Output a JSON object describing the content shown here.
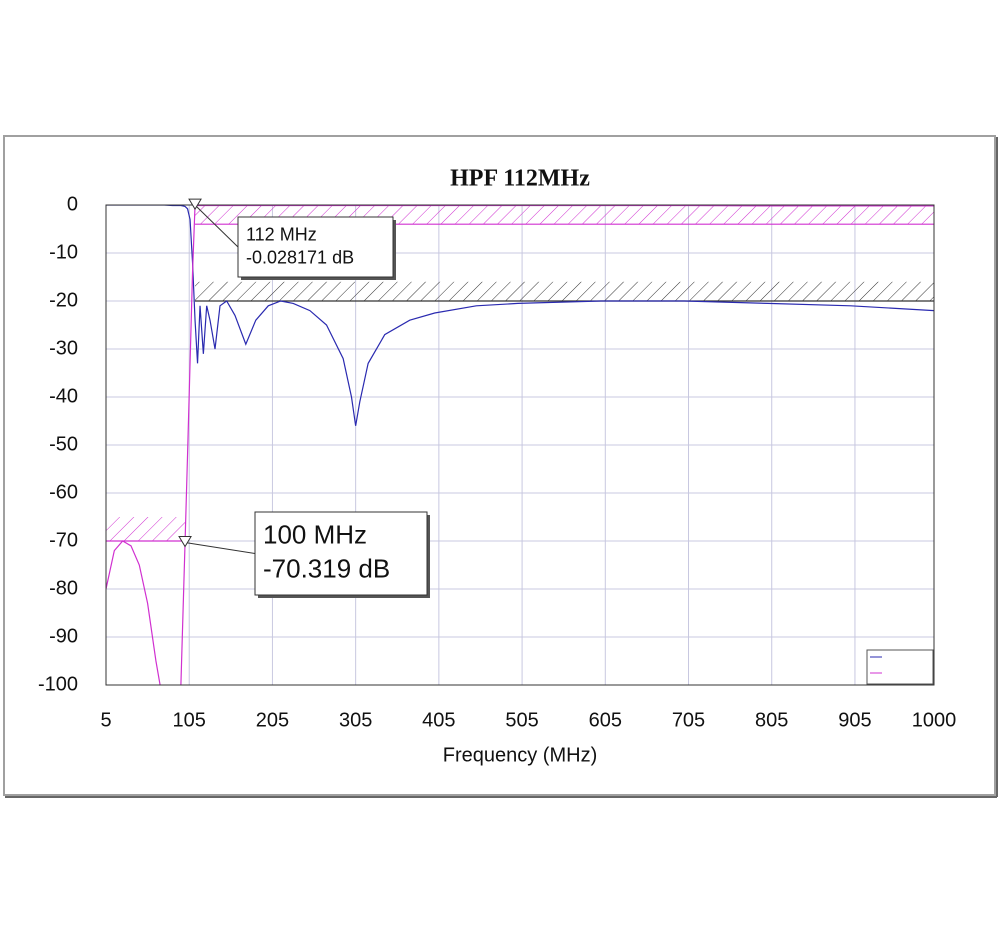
{
  "chart_data": {
    "type": "line",
    "title": "HPF 112MHz",
    "x_label": "Frequency (MHz)",
    "xlim": [
      5,
      1000
    ],
    "ylim": [
      -100,
      0
    ],
    "xticks": [
      5,
      105,
      205,
      305,
      405,
      505,
      605,
      705,
      805,
      905,
      1000
    ],
    "yticks": [
      0,
      -10,
      -20,
      -30,
      -40,
      -50,
      -60,
      -70,
      -80,
      -90,
      -100
    ],
    "grid": true,
    "x": [
      5,
      15,
      25,
      35,
      45,
      55,
      65,
      70,
      75,
      85,
      95,
      100,
      103,
      106,
      109,
      112,
      115,
      118,
      122,
      126,
      130,
      136,
      142,
      150,
      160,
      173,
      185,
      200,
      215,
      230,
      250,
      270,
      290,
      300,
      305,
      310,
      320,
      340,
      370,
      400,
      450,
      500,
      600,
      700,
      800,
      900,
      1000
    ],
    "series": [
      {
        "color": "#2a2ab0",
        "values": [
          0,
          0,
          0,
          0,
          0,
          0,
          0,
          0,
          0,
          -0.1,
          -0.1,
          -0.3,
          -0.8,
          -3,
          -12,
          -24,
          -33,
          -21,
          -31,
          -21,
          -24,
          -30,
          -21,
          -20,
          -23,
          -29,
          -24,
          -21,
          -20,
          -20.5,
          -22,
          -25,
          -32,
          -40,
          -46,
          -41,
          -33,
          -27,
          -24,
          -22.5,
          -21,
          -20.5,
          -20,
          -20,
          -20.5,
          -21,
          -22
        ]
      },
      {
        "color": "#d030d0",
        "values": [
          -80,
          -72,
          -70,
          -71,
          -75,
          -83,
          -95,
          -100,
          null,
          null,
          -100,
          -70.3,
          -52,
          -33,
          -14,
          -0.03,
          -0.1,
          -0.1,
          -0.1,
          -0.1,
          -0.1,
          -0.1,
          -0.1,
          -0.1,
          -0.1,
          -0.1,
          -0.1,
          -0.1,
          -0.1,
          -0.1,
          -0.1,
          -0.1,
          -0.1,
          -0.1,
          -0.1,
          -0.1,
          -0.1,
          -0.1,
          -0.1,
          -0.1,
          -0.1,
          -0.1,
          -0.1,
          -0.1,
          -0.2,
          -0.2,
          -0.2
        ]
      }
    ],
    "masks": [
      {
        "x": [
          112,
          1000
        ],
        "y": [
          -4,
          0
        ],
        "color": "#d030d0"
      },
      {
        "x": [
          112,
          1000
        ],
        "y": [
          -20,
          -16
        ],
        "color": "#333333"
      },
      {
        "x": [
          5,
          100
        ],
        "y": [
          -70,
          -65
        ],
        "color": "#d030d0"
      }
    ],
    "annotations": [
      {
        "x": 112,
        "y": -0.028171,
        "lines": [
          "112 MHz",
          "-0.028171 dB"
        ]
      },
      {
        "x": 100,
        "y": -70.319,
        "lines": [
          "100 MHz",
          "-70.319 dB"
        ]
      }
    ]
  }
}
